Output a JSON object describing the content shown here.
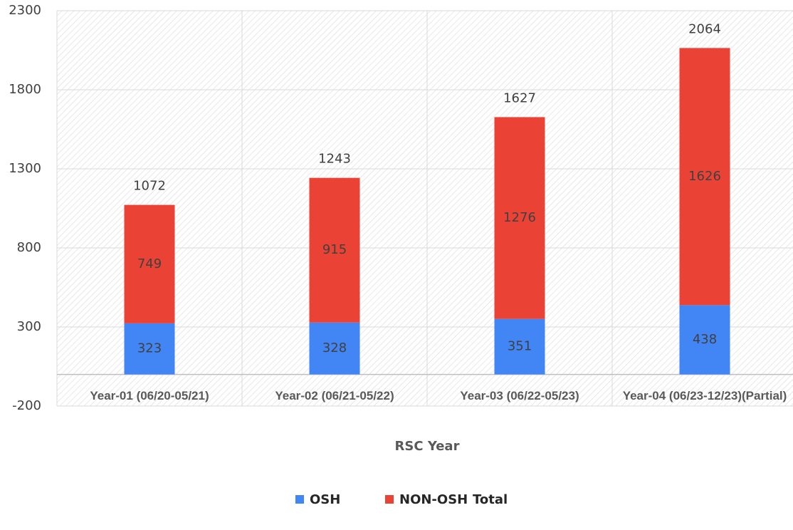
{
  "chart_data": {
    "type": "stacked_bar",
    "x_label": "RSC Year",
    "categories": [
      "Year-01 (06/20-05/21)",
      "Year-02 (06/21-05/22)",
      "Year-03 (06/22-05/23)",
      "Year-04 (06/23-12/23)(Partial)"
    ],
    "series": [
      {
        "name": "OSH",
        "color": "#4285f4",
        "values": [
          323,
          328,
          351,
          438
        ]
      },
      {
        "name": "NON-OSH",
        "color": "#ea4335",
        "values": [
          749,
          915,
          1276,
          1626
        ]
      },
      {
        "name": "Total",
        "values": [
          1072,
          1243,
          1627,
          2064
        ]
      }
    ],
    "ylim": [
      -200,
      2300
    ],
    "yticks": [
      -200,
      300,
      800,
      1300,
      1800,
      2300
    ],
    "grid": true,
    "legend": "bottom"
  }
}
